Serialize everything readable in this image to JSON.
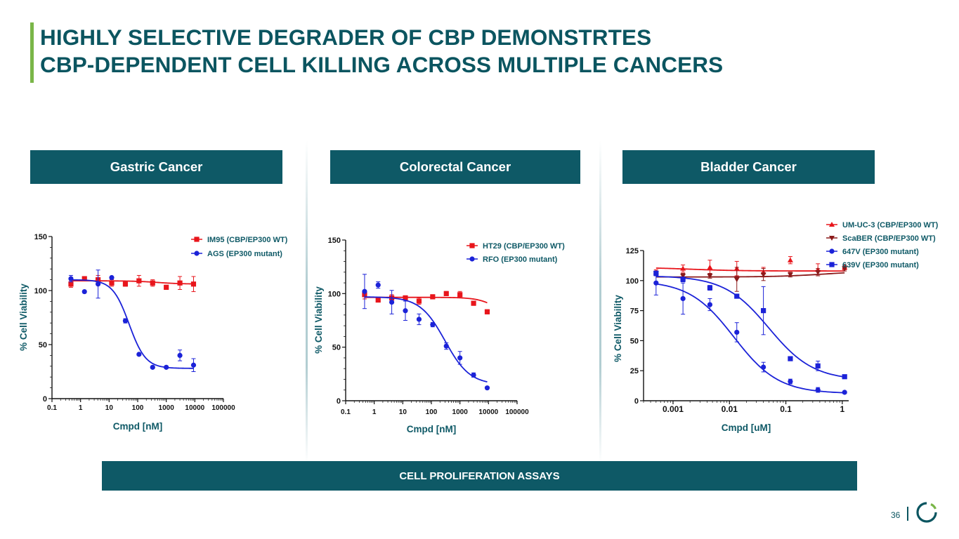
{
  "slide": {
    "title_line1": "HIGHLY SELECTIVE DEGRADER OF CBP DEMONSTRTES",
    "title_line2": "CBP-DEPENDENT CELL KILLING ACROSS MULTIPLE CANCERS",
    "footer": "CELL PROLIFERATION ASSAYS",
    "page_number": "36",
    "colors": {
      "teal": "#0e5966",
      "green": "#7ab648",
      "red": "#e8151b",
      "blue": "#1b22d8",
      "darkred": "#8b1a1a"
    }
  },
  "chart_data": [
    {
      "type": "scatter",
      "panel_title": "Gastric Cancer",
      "xscale": "log",
      "xlabel": "Cmpd [nM]",
      "ylabel": "% Cell Viability",
      "xlim": [
        0.1,
        100000
      ],
      "ylim": [
        0,
        150
      ],
      "xtick_labels": [
        "0.1",
        "1",
        "10",
        "100",
        "1000",
        "10000",
        "100000"
      ],
      "xtick_values": [
        0.1,
        1,
        10,
        100,
        1000,
        10000,
        100000
      ],
      "ytick_labels": [
        "0",
        "50",
        "100",
        "150"
      ],
      "ytick_values": [
        0,
        50,
        100,
        150
      ],
      "series": [
        {
          "name": "IM95 (CBP/EP300 WT)",
          "color": "#e8151b",
          "marker": "square",
          "x": [
            0.46,
            1.37,
            4.1,
            12.3,
            37,
            111,
            333,
            1000,
            3000,
            9000
          ],
          "y": [
            106,
            111,
            110,
            107,
            106,
            109,
            107,
            103,
            107,
            106
          ],
          "err": [
            3,
            2,
            4,
            3,
            2,
            5,
            3,
            2,
            6,
            7
          ],
          "fit": {
            "bottom": 106,
            "top": 109,
            "ic50": 500,
            "hill": 1
          }
        },
        {
          "name": "AGS (EP300 mutant)",
          "color": "#1b22d8",
          "marker": "circle",
          "x": [
            0.46,
            1.37,
            4.1,
            12.3,
            37,
            111,
            333,
            1000,
            3000,
            9000
          ],
          "y": [
            111,
            99,
            106,
            112,
            72,
            41,
            29,
            29,
            40,
            31
          ],
          "err": [
            3,
            0,
            13,
            0,
            2,
            0,
            0,
            0,
            5,
            6
          ],
          "fit": {
            "bottom": 28,
            "top": 110,
            "ic50": 50,
            "hill": 1.5
          }
        }
      ]
    },
    {
      "type": "scatter",
      "panel_title": "Colorectal Cancer",
      "xscale": "log",
      "xlabel": "Cmpd [nM]",
      "ylabel": "% Cell Viability",
      "xlim": [
        0.1,
        100000
      ],
      "ylim": [
        0,
        150
      ],
      "xtick_labels": [
        "0.1",
        "1",
        "10",
        "100",
        "1000",
        "10000",
        "100000"
      ],
      "xtick_values": [
        0.1,
        1,
        10,
        100,
        1000,
        10000,
        100000
      ],
      "ytick_labels": [
        "0",
        "50",
        "100",
        "150"
      ],
      "ytick_values": [
        0,
        50,
        100,
        150
      ],
      "series": [
        {
          "name": "HT29 (CBP/EP300 WT)",
          "color": "#e8151b",
          "marker": "square",
          "x": [
            0.46,
            1.37,
            4.1,
            12.3,
            37,
            111,
            333,
            1000,
            3000,
            9000
          ],
          "y": [
            99,
            94,
            96,
            96,
            93,
            97,
            100,
            99,
            91,
            83
          ],
          "err": [
            4,
            2,
            3,
            2,
            3,
            2,
            2,
            3,
            2,
            2
          ],
          "fit": {
            "bottom": 70,
            "top": 96.5,
            "ic50": 30000,
            "hill": 1.2
          }
        },
        {
          "name": "RFO (EP300 mutant)",
          "color": "#1b22d8",
          "marker": "circle",
          "x": [
            0.46,
            1.37,
            4.1,
            12.3,
            37,
            111,
            333,
            1000,
            3000,
            9000
          ],
          "y": [
            102,
            108,
            92,
            84,
            76,
            71,
            51,
            40,
            24,
            12
          ],
          "err": [
            16,
            3,
            11,
            9,
            5,
            2,
            3,
            6,
            2,
            0
          ],
          "fit": {
            "bottom": 15,
            "top": 97,
            "ic50": 300,
            "hill": 1
          }
        }
      ]
    },
    {
      "type": "scatter",
      "panel_title": "Bladder Cancer",
      "xscale": "log",
      "xlabel": "Cmpd [uM]",
      "ylabel": "% Cell Viability",
      "xlim": [
        0.0003,
        1.3
      ],
      "ylim": [
        0,
        125
      ],
      "xtick_labels": [
        "0.001",
        "0.01",
        "0.1",
        "1"
      ],
      "xtick_values": [
        0.001,
        0.01,
        0.1,
        1
      ],
      "ytick_labels": [
        "0",
        "25",
        "50",
        "75",
        "100",
        "125"
      ],
      "ytick_values": [
        0,
        25,
        50,
        75,
        100,
        125
      ],
      "series": [
        {
          "name": "UM-UC-3 (CBP/EP300 WT)",
          "color": "#e8151b",
          "marker": "triangle",
          "x": [
            0.0005,
            0.0015,
            0.0045,
            0.0135,
            0.04,
            0.12,
            0.37,
            1.1
          ],
          "y": [
            107,
            110,
            111,
            110,
            107,
            117,
            109,
            111
          ],
          "err": [
            2,
            3,
            6,
            6,
            4,
            3,
            5,
            2
          ],
          "fit": {
            "bottom": 108,
            "top": 111,
            "ic50": 0.002,
            "hill": 1
          }
        },
        {
          "name": "ScaBER (CBP/EP300 WT)",
          "color": "#8b1a1a",
          "marker": "triangle-down",
          "x": [
            0.0005,
            0.0015,
            0.0045,
            0.0135,
            0.04,
            0.12,
            0.37,
            1.1
          ],
          "y": [
            106,
            104,
            104,
            101,
            105,
            105,
            107,
            110
          ],
          "err": [
            2,
            2,
            2,
            10,
            5,
            2,
            3,
            2
          ],
          "fit": {
            "bottom": 103,
            "top": 108,
            "ic50": 0.5,
            "hill": 1,
            "increasing": true
          }
        },
        {
          "name": "647V (EP300 mutant)",
          "color": "#1b22d8",
          "marker": "circle",
          "x": [
            0.0005,
            0.0015,
            0.0045,
            0.0135,
            0.04,
            0.12,
            0.37,
            1.1
          ],
          "y": [
            98,
            85,
            80,
            57,
            28,
            16,
            9,
            7
          ],
          "err": [
            10,
            13,
            5,
            8,
            4,
            2,
            2,
            1
          ],
          "fit": {
            "bottom": 6,
            "top": 100,
            "ic50": 0.012,
            "hill": 1.1
          }
        },
        {
          "name": "639V (EP300 mutant)",
          "color": "#1b22d8",
          "marker": "square",
          "x": [
            0.0005,
            0.0015,
            0.0045,
            0.0135,
            0.04,
            0.12,
            0.37,
            1.1
          ],
          "y": [
            106,
            101,
            94,
            87,
            75,
            35,
            29,
            20
          ],
          "err": [
            2,
            2,
            2,
            1,
            20,
            1,
            4,
            1
          ],
          "fit": {
            "bottom": 17,
            "top": 104,
            "ic50": 0.05,
            "hill": 1.1
          }
        }
      ]
    }
  ]
}
